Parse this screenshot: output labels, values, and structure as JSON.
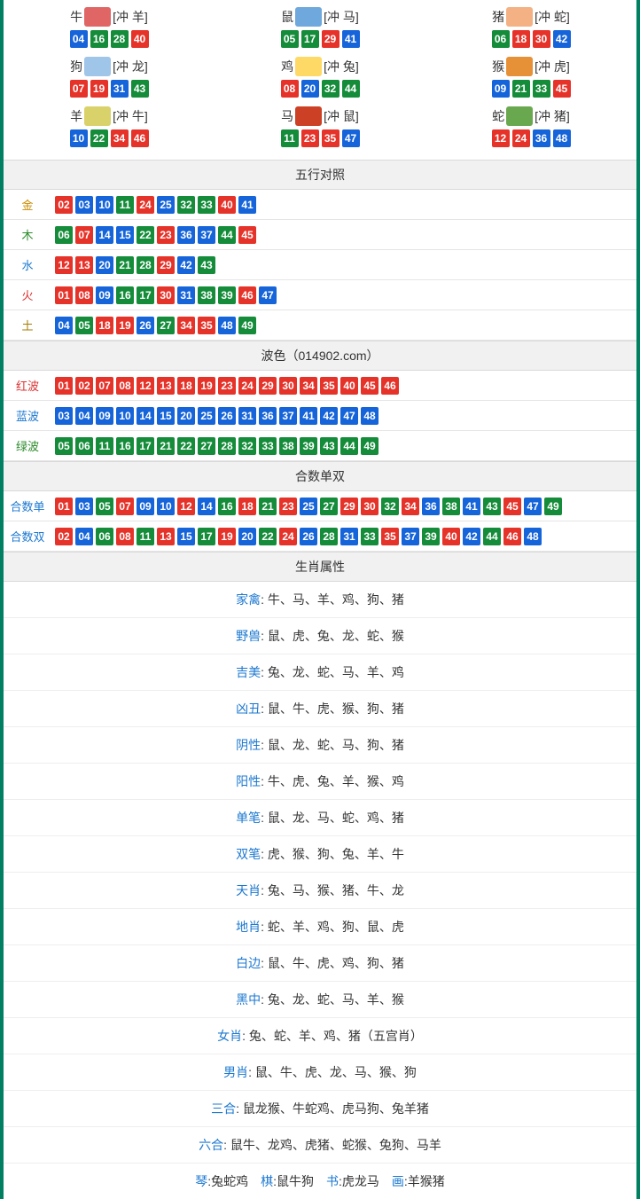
{
  "colors": {
    "red": "#e6332a",
    "blue": "#1664d9",
    "green": "#158c3a",
    "border": "#008060"
  },
  "ball_color_map": {
    "01": "red",
    "02": "red",
    "07": "red",
    "08": "red",
    "12": "red",
    "13": "red",
    "18": "red",
    "19": "red",
    "23": "red",
    "24": "red",
    "29": "red",
    "30": "red",
    "34": "red",
    "35": "red",
    "40": "red",
    "45": "red",
    "46": "red",
    "03": "blue",
    "04": "blue",
    "09": "blue",
    "10": "blue",
    "14": "blue",
    "15": "blue",
    "20": "blue",
    "25": "blue",
    "26": "blue",
    "31": "blue",
    "36": "blue",
    "37": "blue",
    "41": "blue",
    "42": "blue",
    "47": "blue",
    "48": "blue",
    "05": "green",
    "06": "green",
    "11": "green",
    "16": "green",
    "17": "green",
    "21": "green",
    "22": "green",
    "27": "green",
    "28": "green",
    "32": "green",
    "33": "green",
    "38": "green",
    "39": "green",
    "43": "green",
    "44": "green",
    "49": "green"
  },
  "zodiac_icon_bg": {
    "牛": "#e06666",
    "鼠": "#6fa8dc",
    "猪": "#f4b183",
    "狗": "#9fc5e8",
    "鸡": "#ffd966",
    "猴": "#e69138",
    "羊": "#d9d26b",
    "马": "#cc4125",
    "蛇": "#6aa84f"
  },
  "zodiac": [
    {
      "name": "牛",
      "clash": "[冲 羊]",
      "balls": [
        "04",
        "16",
        "28",
        "40"
      ]
    },
    {
      "name": "鼠",
      "clash": "[冲 马]",
      "balls": [
        "05",
        "17",
        "29",
        "41"
      ]
    },
    {
      "name": "猪",
      "clash": "[冲 蛇]",
      "balls": [
        "06",
        "18",
        "30",
        "42"
      ]
    },
    {
      "name": "狗",
      "clash": "[冲 龙]",
      "balls": [
        "07",
        "19",
        "31",
        "43"
      ]
    },
    {
      "name": "鸡",
      "clash": "[冲 兔]",
      "balls": [
        "08",
        "20",
        "32",
        "44"
      ]
    },
    {
      "name": "猴",
      "clash": "[冲 虎]",
      "balls": [
        "09",
        "21",
        "33",
        "45"
      ]
    },
    {
      "name": "羊",
      "clash": "[冲 牛]",
      "balls": [
        "10",
        "22",
        "34",
        "46"
      ]
    },
    {
      "name": "马",
      "clash": "[冲 鼠]",
      "balls": [
        "11",
        "23",
        "35",
        "47"
      ]
    },
    {
      "name": "蛇",
      "clash": "[冲 猪]",
      "balls": [
        "12",
        "24",
        "36",
        "48"
      ]
    }
  ],
  "sections": {
    "wuxing_title": "五行对照",
    "wuxing": [
      {
        "key": "金",
        "cls": "gold",
        "balls": [
          "02",
          "03",
          "10",
          "11",
          "24",
          "25",
          "32",
          "33",
          "40",
          "41"
        ]
      },
      {
        "key": "木",
        "cls": "wood",
        "balls": [
          "06",
          "07",
          "14",
          "15",
          "22",
          "23",
          "36",
          "37",
          "44",
          "45"
        ]
      },
      {
        "key": "水",
        "cls": "water",
        "balls": [
          "12",
          "13",
          "20",
          "21",
          "28",
          "29",
          "42",
          "43"
        ]
      },
      {
        "key": "火",
        "cls": "fire",
        "balls": [
          "01",
          "08",
          "09",
          "16",
          "17",
          "30",
          "31",
          "38",
          "39",
          "46",
          "47"
        ]
      },
      {
        "key": "土",
        "cls": "earth",
        "balls": [
          "04",
          "05",
          "18",
          "19",
          "26",
          "27",
          "34",
          "35",
          "48",
          "49"
        ]
      }
    ],
    "wave_title": "波色（014902.com）",
    "wave": [
      {
        "key": "红波",
        "cls": "redT",
        "balls": [
          "01",
          "02",
          "07",
          "08",
          "12",
          "13",
          "18",
          "19",
          "23",
          "24",
          "29",
          "30",
          "34",
          "35",
          "40",
          "45",
          "46"
        ]
      },
      {
        "key": "蓝波",
        "cls": "blueT",
        "balls": [
          "03",
          "04",
          "09",
          "10",
          "14",
          "15",
          "20",
          "25",
          "26",
          "31",
          "36",
          "37",
          "41",
          "42",
          "47",
          "48"
        ]
      },
      {
        "key": "绿波",
        "cls": "greenT",
        "balls": [
          "05",
          "06",
          "11",
          "16",
          "17",
          "21",
          "22",
          "27",
          "28",
          "32",
          "33",
          "38",
          "39",
          "43",
          "44",
          "49"
        ]
      }
    ],
    "heshu_title": "合数单双",
    "heshu": [
      {
        "key": "合数单",
        "cls": "blueT",
        "balls": [
          "01",
          "03",
          "05",
          "07",
          "09",
          "10",
          "12",
          "14",
          "16",
          "18",
          "21",
          "23",
          "25",
          "27",
          "29",
          "30",
          "32",
          "34",
          "36",
          "38",
          "41",
          "43",
          "45",
          "47",
          "49"
        ]
      },
      {
        "key": "合数双",
        "cls": "blueT",
        "balls": [
          "02",
          "04",
          "06",
          "08",
          "11",
          "13",
          "15",
          "17",
          "19",
          "20",
          "22",
          "24",
          "26",
          "28",
          "31",
          "33",
          "35",
          "37",
          "39",
          "40",
          "42",
          "44",
          "46",
          "48"
        ]
      }
    ],
    "attr_title": "生肖属性",
    "attrs": [
      {
        "label": "家禽",
        "value": "牛、马、羊、鸡、狗、猪"
      },
      {
        "label": "野兽",
        "value": "鼠、虎、兔、龙、蛇、猴"
      },
      {
        "label": "吉美",
        "value": "兔、龙、蛇、马、羊、鸡"
      },
      {
        "label": "凶丑",
        "value": "鼠、牛、虎、猴、狗、猪"
      },
      {
        "label": "阴性",
        "value": "鼠、龙、蛇、马、狗、猪"
      },
      {
        "label": "阳性",
        "value": "牛、虎、兔、羊、猴、鸡"
      },
      {
        "label": "单笔",
        "value": "鼠、龙、马、蛇、鸡、猪"
      },
      {
        "label": "双笔",
        "value": "虎、猴、狗、兔、羊、牛"
      },
      {
        "label": "天肖",
        "value": "兔、马、猴、猪、牛、龙"
      },
      {
        "label": "地肖",
        "value": "蛇、羊、鸡、狗、鼠、虎"
      },
      {
        "label": "白边",
        "value": "鼠、牛、虎、鸡、狗、猪"
      },
      {
        "label": "黑中",
        "value": "兔、龙、蛇、马、羊、猴"
      },
      {
        "label": "女肖",
        "value": "兔、蛇、羊、鸡、猪（五宫肖）"
      },
      {
        "label": "男肖",
        "value": "鼠、牛、虎、龙、马、猴、狗"
      },
      {
        "label": "三合",
        "value": "鼠龙猴、牛蛇鸡、虎马狗、兔羊猪"
      },
      {
        "label": "六合",
        "value": "鼠牛、龙鸡、虎猪、蛇猴、兔狗、马羊"
      }
    ],
    "footer_parts": [
      {
        "label": "琴",
        "value": "兔蛇鸡"
      },
      {
        "label": "棋",
        "value": "鼠牛狗"
      },
      {
        "label": "书",
        "value": "虎龙马"
      },
      {
        "label": "画",
        "value": "羊猴猪"
      }
    ]
  }
}
